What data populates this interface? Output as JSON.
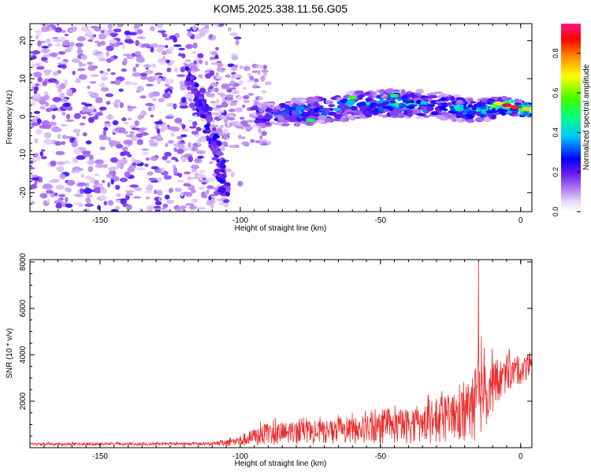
{
  "title": "KOM5.2025.338.11.56.G05",
  "chart_data": [
    {
      "type": "heatmap",
      "xlabel": "Height of straight line (km)",
      "ylabel": "Frequency (Hz)",
      "xlim": [
        -175,
        4
      ],
      "ylim": [
        -25,
        24.5
      ],
      "xticks": [
        -150,
        -100,
        -50,
        0
      ],
      "yticks": [
        -20,
        -10,
        0,
        10,
        20
      ],
      "colorbar": {
        "label": "Normalized spectral amplitude",
        "range": [
          0,
          0.95
        ],
        "ticks": [
          0.0,
          0.2,
          0.4,
          0.6,
          0.8
        ],
        "colors": [
          "#ffffff",
          "#c99cf2",
          "#8a2be2",
          "#1010ff",
          "#00ffff",
          "#00ff00",
          "#ffff00",
          "#ff8000",
          "#ff0000",
          "#ff1a8c"
        ]
      },
      "noise_region": {
        "x_from": -175,
        "x_to": -110,
        "freq_from": -25,
        "freq_to": 24.5,
        "typical_amplitude": 0.12
      },
      "band": [
        {
          "x": -90,
          "f_center": 0.5,
          "f_halfwidth": 3,
          "amplitude": 0.4
        },
        {
          "x": -75,
          "f_center": 1.5,
          "f_halfwidth": 3.5,
          "amplitude": 0.45
        },
        {
          "x": -60,
          "f_center": 3.0,
          "f_halfwidth": 3.5,
          "amplitude": 0.5
        },
        {
          "x": -45,
          "f_center": 3.5,
          "f_halfwidth": 3.5,
          "amplitude": 0.5
        },
        {
          "x": -30,
          "f_center": 3.0,
          "f_halfwidth": 3.5,
          "amplitude": 0.45
        },
        {
          "x": -15,
          "f_center": 1.5,
          "f_halfwidth": 3.0,
          "amplitude": 0.5
        },
        {
          "x": -5,
          "f_center": 3.0,
          "f_halfwidth": 2.0,
          "amplitude": 0.9
        },
        {
          "x": 2,
          "f_center": 2.0,
          "f_halfwidth": 2.0,
          "amplitude": 0.7
        }
      ],
      "curved_arc": [
        {
          "x": -120,
          "f": 13
        },
        {
          "x": -115,
          "f": 5
        },
        {
          "x": -112,
          "f": 0
        },
        {
          "x": -108,
          "f": -10
        },
        {
          "x": -105,
          "f": -22
        }
      ]
    },
    {
      "type": "line",
      "xlabel": "Height of straight line (km)",
      "ylabel": "SNR (10 * v/v)",
      "xlim": [
        -175,
        4
      ],
      "ylim": [
        0,
        8100
      ],
      "xticks": [
        -150,
        -100,
        -50,
        0
      ],
      "yticks": [
        2000,
        4000,
        6000,
        8000
      ],
      "color": "#ee2a2a",
      "envelope": [
        {
          "x": -175,
          "mean": 150,
          "spread": 60
        },
        {
          "x": -110,
          "mean": 160,
          "spread": 60
        },
        {
          "x": -100,
          "mean": 300,
          "spread": 250
        },
        {
          "x": -90,
          "mean": 600,
          "spread": 500
        },
        {
          "x": -70,
          "mean": 650,
          "spread": 500
        },
        {
          "x": -50,
          "mean": 800,
          "spread": 650
        },
        {
          "x": -30,
          "mean": 1100,
          "spread": 900
        },
        {
          "x": -20,
          "mean": 1500,
          "spread": 1200
        },
        {
          "x": -15,
          "mean": 2000,
          "spread": 1800
        },
        {
          "x": -10,
          "mean": 2700,
          "spread": 1200
        },
        {
          "x": -5,
          "mean": 3100,
          "spread": 700
        },
        {
          "x": 4,
          "mean": 3500,
          "spread": 500
        }
      ],
      "peaks": [
        {
          "x": -15,
          "value": 8050
        },
        {
          "x": -14,
          "value": 4800
        },
        {
          "x": -13,
          "value": 4300
        },
        {
          "x": -4,
          "value": 4250
        },
        {
          "x": 3,
          "value": 4000
        }
      ]
    }
  ]
}
